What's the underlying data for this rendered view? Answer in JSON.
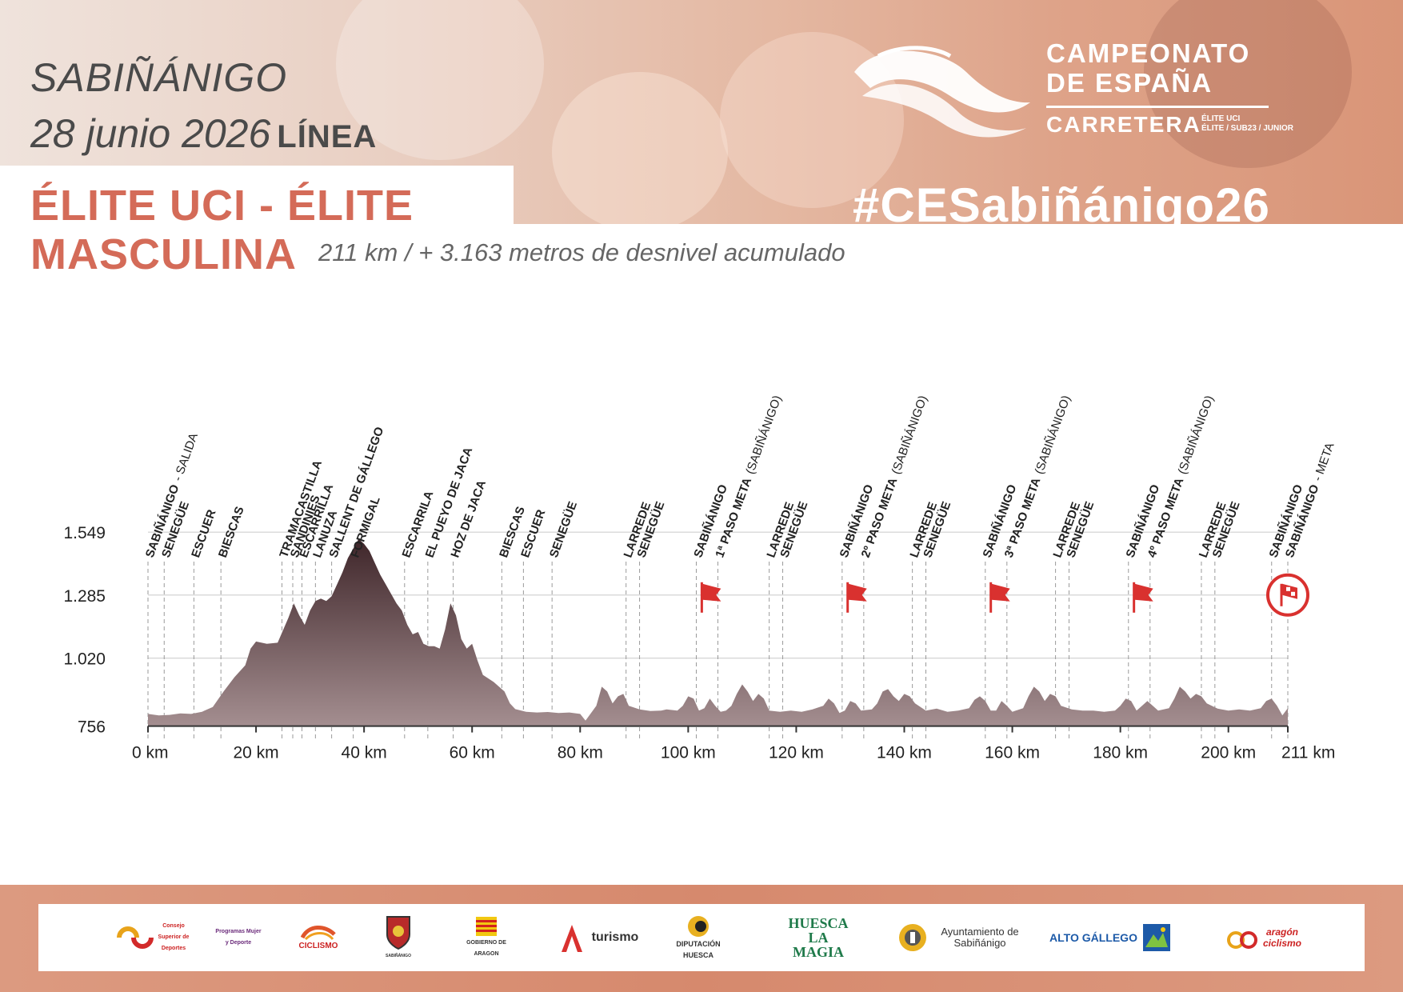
{
  "header": {
    "city": "SABIÑÁNIGO",
    "date": "28 junio 2026",
    "race_type": "LÍNEA",
    "category_line1": "ÉLITE UCI - ÉLITE",
    "category_line2": "MASCULINA",
    "subtitle": "211 km / + 3.163 metros de desnivel acumulado",
    "hashtag": "#CESabiñánigo26",
    "championship_line1": "CAMPEONATO",
    "championship_line2": "DE ESPAÑA",
    "championship_line3": "CARRETERA",
    "championship_sub1": "ÉLITE UCI",
    "championship_sub2": "ÉLITE / SUB23 / JUNIOR"
  },
  "colors": {
    "accent": "#d46b58",
    "profile_top": "#3f262a",
    "profile_bottom": "#a48e90",
    "flag": "#d9312f"
  },
  "chart_data": {
    "type": "area",
    "title": "",
    "xlabel": "",
    "ylabel": "",
    "x_unit": "km",
    "xlim": [
      0,
      211
    ],
    "ylim": [
      700,
      1600
    ],
    "y_ticks": [
      {
        "value": 756,
        "label": "756"
      },
      {
        "value": 1020,
        "label": "1.020"
      },
      {
        "value": 1285,
        "label": "1.285"
      },
      {
        "value": 1549,
        "label": "1.549"
      }
    ],
    "x_ticks": [
      {
        "value": 0,
        "label": "0 km"
      },
      {
        "value": 20,
        "label": "20 km"
      },
      {
        "value": 40,
        "label": "40 km"
      },
      {
        "value": 60,
        "label": "60 km"
      },
      {
        "value": 80,
        "label": "80 km"
      },
      {
        "value": 100,
        "label": "100 km"
      },
      {
        "value": 120,
        "label": "120 km"
      },
      {
        "value": 140,
        "label": "140 km"
      },
      {
        "value": 160,
        "label": "160 km"
      },
      {
        "value": 180,
        "label": "180 km"
      },
      {
        "value": 200,
        "label": "200 km"
      },
      {
        "value": 211,
        "label": "211 km"
      }
    ],
    "grid": true,
    "profile": [
      [
        0,
        786
      ],
      [
        2,
        780
      ],
      [
        4,
        782
      ],
      [
        6,
        788
      ],
      [
        8,
        786
      ],
      [
        10,
        795
      ],
      [
        12,
        815
      ],
      [
        14,
        880
      ],
      [
        16,
        940
      ],
      [
        18,
        990
      ],
      [
        19,
        1060
      ],
      [
        20,
        1090
      ],
      [
        22,
        1080
      ],
      [
        24,
        1085
      ],
      [
        26,
        1190
      ],
      [
        27,
        1250
      ],
      [
        28,
        1200
      ],
      [
        29,
        1160
      ],
      [
        30,
        1220
      ],
      [
        31,
        1260
      ],
      [
        32,
        1270
      ],
      [
        33,
        1260
      ],
      [
        34,
        1280
      ],
      [
        35,
        1330
      ],
      [
        36,
        1380
      ],
      [
        37,
        1440
      ],
      [
        38,
        1480
      ],
      [
        39,
        1520
      ],
      [
        40,
        1500
      ],
      [
        41,
        1470
      ],
      [
        42,
        1420
      ],
      [
        43,
        1370
      ],
      [
        44,
        1330
      ],
      [
        45,
        1290
      ],
      [
        46,
        1250
      ],
      [
        47,
        1220
      ],
      [
        48,
        1160
      ],
      [
        49,
        1120
      ],
      [
        50,
        1130
      ],
      [
        51,
        1080
      ],
      [
        52,
        1070
      ],
      [
        53,
        1070
      ],
      [
        54,
        1060
      ],
      [
        55,
        1140
      ],
      [
        56,
        1250
      ],
      [
        57,
        1200
      ],
      [
        58,
        1100
      ],
      [
        59,
        1060
      ],
      [
        60,
        1080
      ],
      [
        61,
        1010
      ],
      [
        62,
        950
      ],
      [
        64,
        920
      ],
      [
        66,
        880
      ],
      [
        67,
        830
      ],
      [
        68,
        806
      ],
      [
        70,
        795
      ],
      [
        72,
        792
      ],
      [
        74,
        794
      ],
      [
        76,
        790
      ],
      [
        78,
        792
      ],
      [
        80,
        786
      ],
      [
        81,
        758
      ],
      [
        83,
        820
      ],
      [
        84,
        900
      ],
      [
        85,
        880
      ],
      [
        86,
        830
      ],
      [
        87,
        860
      ],
      [
        88,
        870
      ],
      [
        89,
        820
      ],
      [
        91,
        805
      ],
      [
        93,
        798
      ],
      [
        95,
        800
      ],
      [
        96,
        805
      ],
      [
        98,
        800
      ],
      [
        99,
        820
      ],
      [
        100,
        860
      ],
      [
        101,
        850
      ],
      [
        102,
        800
      ],
      [
        103,
        810
      ],
      [
        104,
        850
      ],
      [
        105,
        820
      ],
      [
        106,
        795
      ],
      [
        107,
        800
      ],
      [
        108,
        820
      ],
      [
        109,
        870
      ],
      [
        110,
        910
      ],
      [
        111,
        880
      ],
      [
        112,
        840
      ],
      [
        113,
        870
      ],
      [
        114,
        850
      ],
      [
        115,
        800
      ],
      [
        117,
        795
      ],
      [
        119,
        800
      ],
      [
        121,
        795
      ],
      [
        123,
        805
      ],
      [
        125,
        820
      ],
      [
        126,
        850
      ],
      [
        127,
        830
      ],
      [
        128,
        790
      ],
      [
        129,
        800
      ],
      [
        130,
        840
      ],
      [
        131,
        830
      ],
      [
        132,
        800
      ],
      [
        134,
        805
      ],
      [
        135,
        830
      ],
      [
        136,
        880
      ],
      [
        137,
        890
      ],
      [
        138,
        860
      ],
      [
        139,
        840
      ],
      [
        140,
        870
      ],
      [
        141,
        860
      ],
      [
        142,
        830
      ],
      [
        144,
        800
      ],
      [
        146,
        808
      ],
      [
        148,
        795
      ],
      [
        150,
        800
      ],
      [
        152,
        810
      ],
      [
        153,
        845
      ],
      [
        154,
        860
      ],
      [
        155,
        840
      ],
      [
        156,
        800
      ],
      [
        157,
        800
      ],
      [
        158,
        840
      ],
      [
        159,
        820
      ],
      [
        160,
        795
      ],
      [
        162,
        810
      ],
      [
        163,
        860
      ],
      [
        164,
        900
      ],
      [
        165,
        880
      ],
      [
        166,
        840
      ],
      [
        167,
        870
      ],
      [
        168,
        860
      ],
      [
        169,
        820
      ],
      [
        171,
        805
      ],
      [
        173,
        800
      ],
      [
        175,
        800
      ],
      [
        177,
        795
      ],
      [
        179,
        800
      ],
      [
        180,
        820
      ],
      [
        181,
        850
      ],
      [
        182,
        840
      ],
      [
        183,
        800
      ],
      [
        184,
        820
      ],
      [
        185,
        840
      ],
      [
        186,
        820
      ],
      [
        187,
        800
      ],
      [
        189,
        810
      ],
      [
        190,
        850
      ],
      [
        191,
        900
      ],
      [
        192,
        880
      ],
      [
        193,
        850
      ],
      [
        194,
        870
      ],
      [
        195,
        860
      ],
      [
        196,
        830
      ],
      [
        198,
        808
      ],
      [
        200,
        800
      ],
      [
        202,
        805
      ],
      [
        204,
        800
      ],
      [
        206,
        810
      ],
      [
        207,
        840
      ],
      [
        208,
        850
      ],
      [
        209,
        820
      ],
      [
        210,
        780
      ],
      [
        211,
        810
      ]
    ],
    "flags": [
      {
        "km": 104,
        "elevation": 1285,
        "type": "paso-meta"
      },
      {
        "km": 131,
        "elevation": 1285,
        "type": "paso-meta"
      },
      {
        "km": 157.5,
        "elevation": 1285,
        "type": "paso-meta"
      },
      {
        "km": 184,
        "elevation": 1285,
        "type": "paso-meta"
      },
      {
        "km": 211,
        "elevation": 1285,
        "type": "meta"
      }
    ],
    "waypoints": [
      {
        "km": 0,
        "name": "SABIÑÁNIGO",
        "note": "- SALIDA",
        "bold": false
      },
      {
        "km": 3,
        "name": "SENEGÜE",
        "note": "",
        "bold": false
      },
      {
        "km": 8.5,
        "name": "ESCUER",
        "note": "",
        "bold": false
      },
      {
        "km": 13.5,
        "name": "BIESCAS",
        "note": "",
        "bold": false
      },
      {
        "km": 24.8,
        "name": "TRAMACASTILLA",
        "note": "",
        "bold": false
      },
      {
        "km": 26.8,
        "name": "SANDINIES",
        "note": "",
        "bold": false
      },
      {
        "km": 28.5,
        "name": "ESCARRILLA",
        "note": "",
        "bold": false
      },
      {
        "km": 31,
        "name": "LANUZA",
        "note": "",
        "bold": false
      },
      {
        "km": 34,
        "name": "SALLENT DE GÁLLEGO",
        "note": "",
        "bold": false
      },
      {
        "km": 38,
        "name": "FORMIGAL",
        "note": "",
        "bold": false
      },
      {
        "km": 47.5,
        "name": "ESCARRILA",
        "note": "",
        "bold": false
      },
      {
        "km": 51.8,
        "name": "EL PUEYO DE JACA",
        "note": "",
        "bold": false
      },
      {
        "km": 56.5,
        "name": "HOZ DE JACA",
        "note": "",
        "bold": false
      },
      {
        "km": 65.5,
        "name": "BIESCAS",
        "note": "",
        "bold": false
      },
      {
        "km": 69.5,
        "name": "ESCUER",
        "note": "",
        "bold": false
      },
      {
        "km": 74.8,
        "name": "SENEGÜE",
        "note": "",
        "bold": false
      },
      {
        "km": 88.5,
        "name": "LARREDE",
        "note": "",
        "bold": false
      },
      {
        "km": 91,
        "name": "SENEGÜE",
        "note": "",
        "bold": false
      },
      {
        "km": 101.5,
        "name": "SABIÑÁNIGO",
        "note": "",
        "bold": false
      },
      {
        "km": 105.5,
        "name": "1ª PASO META",
        "note": "(SABIÑÁNIGO)",
        "bold": true
      },
      {
        "km": 115,
        "name": "LARREDE",
        "note": "",
        "bold": false
      },
      {
        "km": 117.5,
        "name": "SENEGÜE",
        "note": "",
        "bold": false
      },
      {
        "km": 128.5,
        "name": "SABIÑÁNIGO",
        "note": "",
        "bold": false
      },
      {
        "km": 132.5,
        "name": "2º PASO META",
        "note": "(SABIÑÁNIGO)",
        "bold": true
      },
      {
        "km": 141.5,
        "name": "LARREDE",
        "note": "",
        "bold": false
      },
      {
        "km": 144,
        "name": "SENEGÜE",
        "note": "",
        "bold": false
      },
      {
        "km": 155,
        "name": "SABIÑÁNIGO",
        "note": "",
        "bold": false
      },
      {
        "km": 159,
        "name": "3ª PASO META",
        "note": "(SABIÑÁNIGO)",
        "bold": true
      },
      {
        "km": 168,
        "name": "LARREDE",
        "note": "",
        "bold": false
      },
      {
        "km": 170.5,
        "name": "SENEGÜE",
        "note": "",
        "bold": false
      },
      {
        "km": 181.5,
        "name": "SABIÑÁNIGO",
        "note": "",
        "bold": false
      },
      {
        "km": 185.5,
        "name": "4º PASO META",
        "note": "(SABIÑÁNIGO)",
        "bold": true
      },
      {
        "km": 195,
        "name": "LARREDE",
        "note": "",
        "bold": false
      },
      {
        "km": 197.5,
        "name": "SENEGÜE",
        "note": "",
        "bold": false
      },
      {
        "km": 208,
        "name": "SABIÑÁNIGO",
        "note": "",
        "bold": false
      },
      {
        "km": 211,
        "name": "SABIÑÁNIGO",
        "note": "- META",
        "bold": false
      }
    ]
  },
  "sponsors": [
    {
      "name": "csd-logo",
      "text": "Consejo Superior de Deportes"
    },
    {
      "name": "ministerio-logo",
      "text": "Programas Mujer y Deporte"
    },
    {
      "name": "rfec-logo",
      "text": "CICLISMO"
    },
    {
      "name": "sabinanigo-shield",
      "text": "SABIÑÁNIGO"
    },
    {
      "name": "gobierno-aragon-logo",
      "text": "GOBIERNO DE ARAGON"
    },
    {
      "name": "aragon-turismo-logo",
      "text": "turismo"
    },
    {
      "name": "diputacion-huesca-logo",
      "text": "DIPUTACIÓN HUESCA"
    },
    {
      "name": "huesca-la-magia-logo",
      "text": "HUESCA LA MAGIA"
    },
    {
      "name": "ayuntamiento-logo",
      "text": "Ayuntamiento de Sabiñánigo"
    },
    {
      "name": "alto-gallego-logo",
      "text": "ALTO GÁLLEGO"
    },
    {
      "name": "aragon-ciclismo-logo",
      "text": "aragón ciclismo"
    }
  ]
}
